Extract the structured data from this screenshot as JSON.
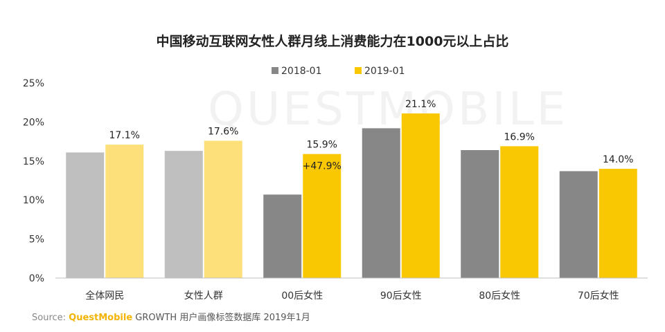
{
  "chart_data": {
    "type": "bar",
    "title": "中国移动互联网女性人群月线上消费能力在1000元以上占比",
    "categories": [
      "全体网民",
      "女性人群",
      "00后女性",
      "90后女性",
      "80后女性",
      "70后女性"
    ],
    "series": [
      {
        "name": "2018-01",
        "values": [
          16.1,
          16.3,
          10.7,
          19.2,
          16.4,
          13.7
        ],
        "color_default": "#878787",
        "color_light": "#bfbfbf"
      },
      {
        "name": "2019-01",
        "values": [
          17.1,
          17.6,
          15.9,
          21.1,
          16.9,
          14.0
        ],
        "labels": [
          "17.1%",
          "17.6%",
          "15.9%",
          "21.1%",
          "16.9%",
          "14.0%"
        ],
        "color_default": "#f9c802",
        "color_light": "#fde07a"
      }
    ],
    "highlight_faded_categories": [
      0,
      1
    ],
    "annotation": {
      "category_index": 2,
      "text": "+47.9%"
    },
    "y_ticks": [
      "0%",
      "5%",
      "10%",
      "15%",
      "20%",
      "25%"
    ],
    "ylim": [
      0,
      25
    ],
    "legend_position": "top-center",
    "grid": false
  },
  "source": {
    "prefix": "Source:",
    "brand": "QuestMobile",
    "rest": " GROWTH 用户画像标签数据库 2019年1月"
  },
  "watermark": "QUESTMOBILE"
}
